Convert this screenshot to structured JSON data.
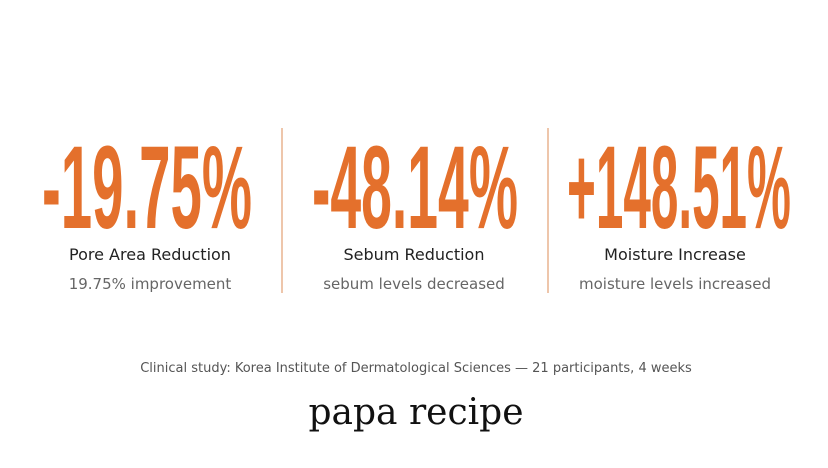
{
  "stats": [
    {
      "value": "-19.75%",
      "label": "Pore Area Reduction",
      "detail": "19.75% improvement"
    },
    {
      "value": "-48.14%",
      "label": "Sebum Reduction",
      "detail": "sebum levels decreased"
    },
    {
      "value": "+148.51%",
      "label": "Moisture Increase",
      "detail": "moisture levels increased"
    }
  ],
  "footnote": "Clinical study: Korea Institute of Dermatological Sciences — 21 participants, 4 weeks",
  "brand": "papa recipe"
}
